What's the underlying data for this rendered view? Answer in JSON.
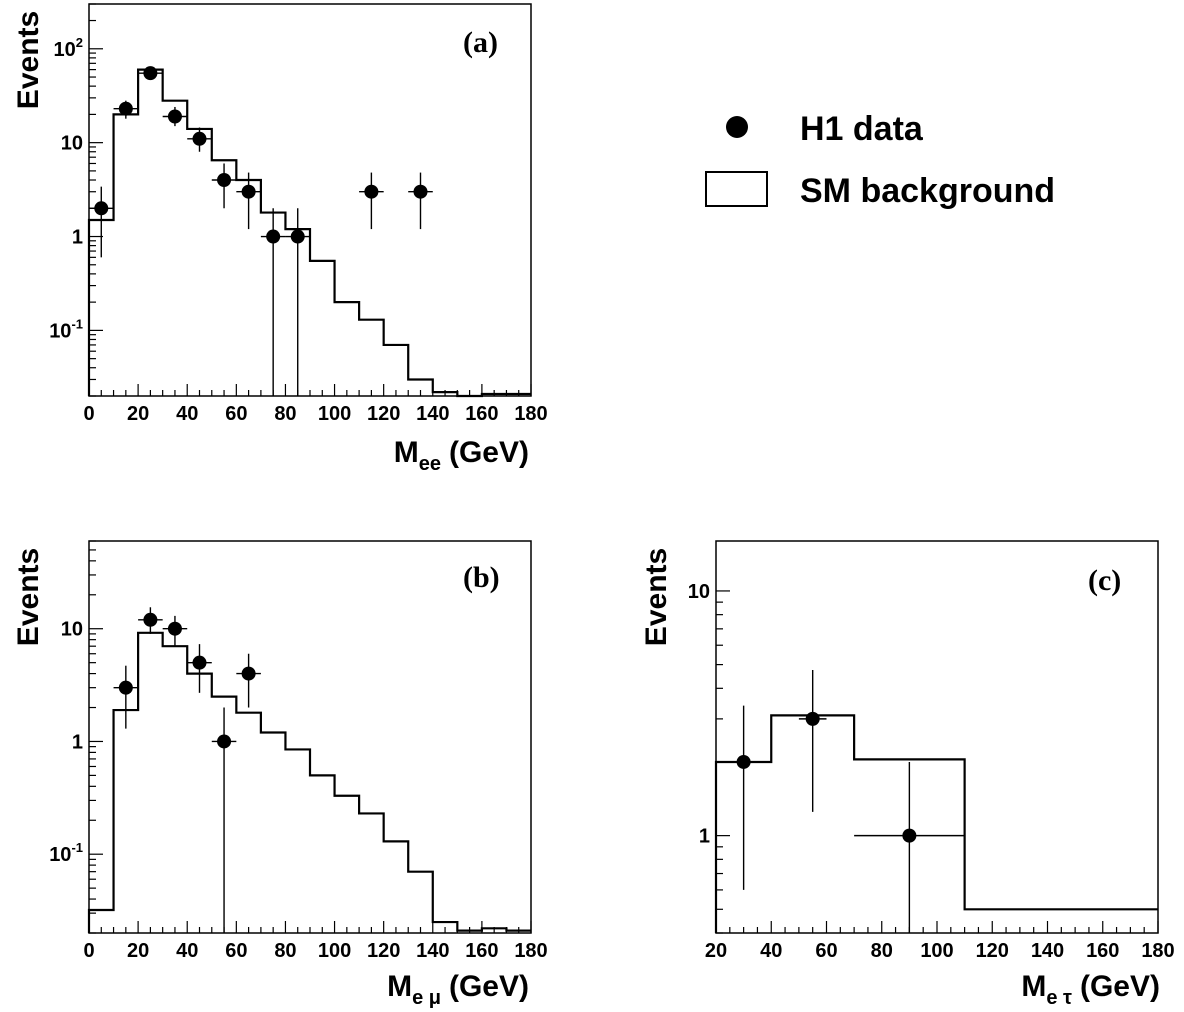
{
  "legend": {
    "data_label": "H1 data",
    "background_label": "SM background"
  },
  "chart_data": [
    {
      "type": "histogram",
      "panel_label": "(a)",
      "ylabel": "Events",
      "xlabel_main": "M",
      "xlabel_sub": "ee",
      "xlabel_unit": "(GeV)",
      "log_y": true,
      "xlim": [
        0,
        180
      ],
      "ylim": [
        0.02,
        300
      ],
      "x_ticks": [
        "0",
        "20",
        "40",
        "60",
        "80",
        "100",
        "120",
        "140",
        "160",
        "180"
      ],
      "y_ticks": [
        {
          "value": 100,
          "base": "10",
          "exp": "2"
        },
        {
          "value": 10,
          "base": "10",
          "exp": ""
        },
        {
          "value": 1,
          "base": "1",
          "exp": ""
        },
        {
          "value": 0.1,
          "base": "10",
          "exp": "-1"
        }
      ],
      "background_edges": [
        0,
        10,
        20,
        30,
        40,
        50,
        60,
        70,
        80,
        90,
        100,
        110,
        120,
        130,
        140,
        150,
        160,
        170,
        180
      ],
      "background_values": [
        1.5,
        20,
        60,
        28,
        14,
        6.5,
        4.0,
        1.8,
        1.2,
        0.55,
        0.2,
        0.13,
        0.07,
        0.03,
        0.022,
        0.02,
        0.021,
        0.021
      ],
      "data_points": [
        {
          "x": 5,
          "y": 2,
          "lo": 0.6,
          "hi": 3.4
        },
        {
          "x": 15,
          "y": 23,
          "lo": 18,
          "hi": 28
        },
        {
          "x": 25,
          "y": 55,
          "lo": 48,
          "hi": 63
        },
        {
          "x": 35,
          "y": 19,
          "lo": 15,
          "hi": 24
        },
        {
          "x": 45,
          "y": 11,
          "lo": 8,
          "hi": 14.5
        },
        {
          "x": 55,
          "y": 4,
          "lo": 2,
          "hi": 6
        },
        {
          "x": 65,
          "y": 3,
          "lo": 1.2,
          "hi": 4.8
        },
        {
          "x": 75,
          "y": 1,
          "lo": 0.02,
          "hi": 2
        },
        {
          "x": 85,
          "y": 1,
          "lo": 0.02,
          "hi": 2
        },
        {
          "x": 115,
          "y": 3,
          "lo": 1.2,
          "hi": 4.8
        },
        {
          "x": 135,
          "y": 3,
          "lo": 1.2,
          "hi": 4.8
        }
      ]
    },
    {
      "type": "histogram",
      "panel_label": "(b)",
      "ylabel": "Events",
      "xlabel_main": "M",
      "xlabel_sub": "e μ",
      "xlabel_unit": "(GeV)",
      "log_y": true,
      "xlim": [
        0,
        180
      ],
      "ylim": [
        0.02,
        60
      ],
      "x_ticks": [
        "0",
        "20",
        "40",
        "60",
        "80",
        "100",
        "120",
        "140",
        "160",
        "180"
      ],
      "y_ticks": [
        {
          "value": 10,
          "base": "10",
          "exp": ""
        },
        {
          "value": 1,
          "base": "1",
          "exp": ""
        },
        {
          "value": 0.1,
          "base": "10",
          "exp": "-1"
        }
      ],
      "background_edges": [
        0,
        10,
        20,
        30,
        40,
        50,
        60,
        70,
        80,
        90,
        100,
        110,
        120,
        130,
        140,
        150,
        160,
        170,
        180
      ],
      "background_values": [
        0.032,
        1.9,
        9.2,
        7.0,
        4.0,
        2.5,
        1.8,
        1.2,
        0.85,
        0.5,
        0.33,
        0.23,
        0.13,
        0.07,
        0.025,
        0.021,
        0.022,
        0.021
      ],
      "data_points": [
        {
          "x": 15,
          "y": 3,
          "lo": 1.3,
          "hi": 4.7
        },
        {
          "x": 25,
          "y": 12,
          "lo": 9,
          "hi": 15.5
        },
        {
          "x": 35,
          "y": 10,
          "lo": 7,
          "hi": 13
        },
        {
          "x": 45,
          "y": 5,
          "lo": 2.7,
          "hi": 7.3
        },
        {
          "x": 55,
          "y": 1,
          "lo": 0.02,
          "hi": 2
        },
        {
          "x": 65,
          "y": 4,
          "lo": 2,
          "hi": 6
        }
      ]
    },
    {
      "type": "histogram",
      "panel_label": "(c)",
      "ylabel": "Events",
      "xlabel_main": "M",
      "xlabel_sub": "e τ",
      "xlabel_unit": "(GeV)",
      "log_y": true,
      "xlim": [
        20,
        180
      ],
      "ylim": [
        0.4,
        16
      ],
      "x_ticks": [
        "20",
        "40",
        "60",
        "80",
        "100",
        "120",
        "140",
        "160",
        "180"
      ],
      "y_ticks": [
        {
          "value": 10,
          "base": "10",
          "exp": ""
        },
        {
          "value": 1,
          "base": "1",
          "exp": ""
        }
      ],
      "background_edges": [
        20,
        40,
        55,
        70,
        110,
        180
      ],
      "background_values": [
        2.0,
        3.1,
        3.1,
        2.05,
        0.5
      ],
      "data_points": [
        {
          "x": 30,
          "y": 2,
          "lo": 0.6,
          "hi": 3.4
        },
        {
          "x": 55,
          "y": 3,
          "lo": 1.25,
          "hi": 4.75
        },
        {
          "x": 90,
          "y": 1,
          "lo": 0.4,
          "hi": 2,
          "xlo": 70,
          "xhi": 110
        }
      ]
    }
  ]
}
